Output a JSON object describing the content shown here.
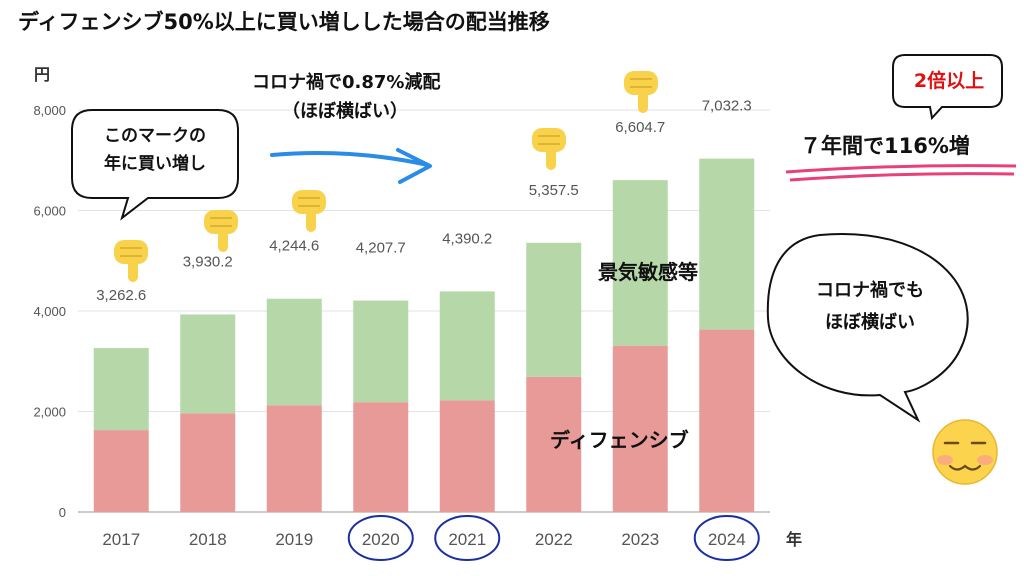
{
  "title": "ディフェンシブ50%以上に買い増しした場合の配当推移",
  "chart_data": {
    "type": "bar",
    "stacked": true,
    "categories": [
      "2017",
      "2018",
      "2019",
      "2020",
      "2021",
      "2022",
      "2023",
      "2024"
    ],
    "series": [
      {
        "name": "ディフェンシブ",
        "color": "#e89a98",
        "values": [
          1630,
          1965,
          2125,
          2185,
          2220,
          2690,
          3310,
          3630
        ]
      },
      {
        "name": "景気敏感等",
        "color": "#b6d7a8",
        "values": [
          1632.6,
          1965.2,
          2119.6,
          2022.7,
          2170.2,
          2667.5,
          3294.7,
          3402.3
        ]
      }
    ],
    "totals": [
      "3,262.6",
      "3,930.2",
      "4,244.6",
      "4,207.7",
      "4,390.2",
      "5,357.5",
      "6,604.7",
      "7,032.3"
    ],
    "ylabel": "円",
    "xlabel": "年",
    "yticks": [
      "0",
      "2,000",
      "4,000",
      "6,000",
      "8,000"
    ],
    "ylim": [
      0,
      8000
    ],
    "grid": true,
    "circled_categories": [
      "2020",
      "2021",
      "2024"
    ]
  },
  "annotations": {
    "covid_note_line1": "コロナ禍で0.87%減配",
    "covid_note_line2": "（ほぼ横ばい）",
    "bubble_left_line1": "このマークの",
    "bubble_left_line2": "年に買い増し",
    "double_badge": "2倍以上",
    "growth": "７年間で116%増",
    "bubble_right_line1": "コロナ禍でも",
    "bubble_right_line2": "ほぼ横ばい",
    "series_label_cyclical": "景気敏感等",
    "series_label_defensive": "ディフェンシブ"
  },
  "colors": {
    "arrow": "#2b8ce6",
    "circle": "#1a2fa0",
    "underline": "#e8407a",
    "badge_text": "#e01010",
    "hand": "#f7d24a"
  },
  "icons": [
    "pointing-down-hand-icon",
    "smirk-face-icon"
  ]
}
